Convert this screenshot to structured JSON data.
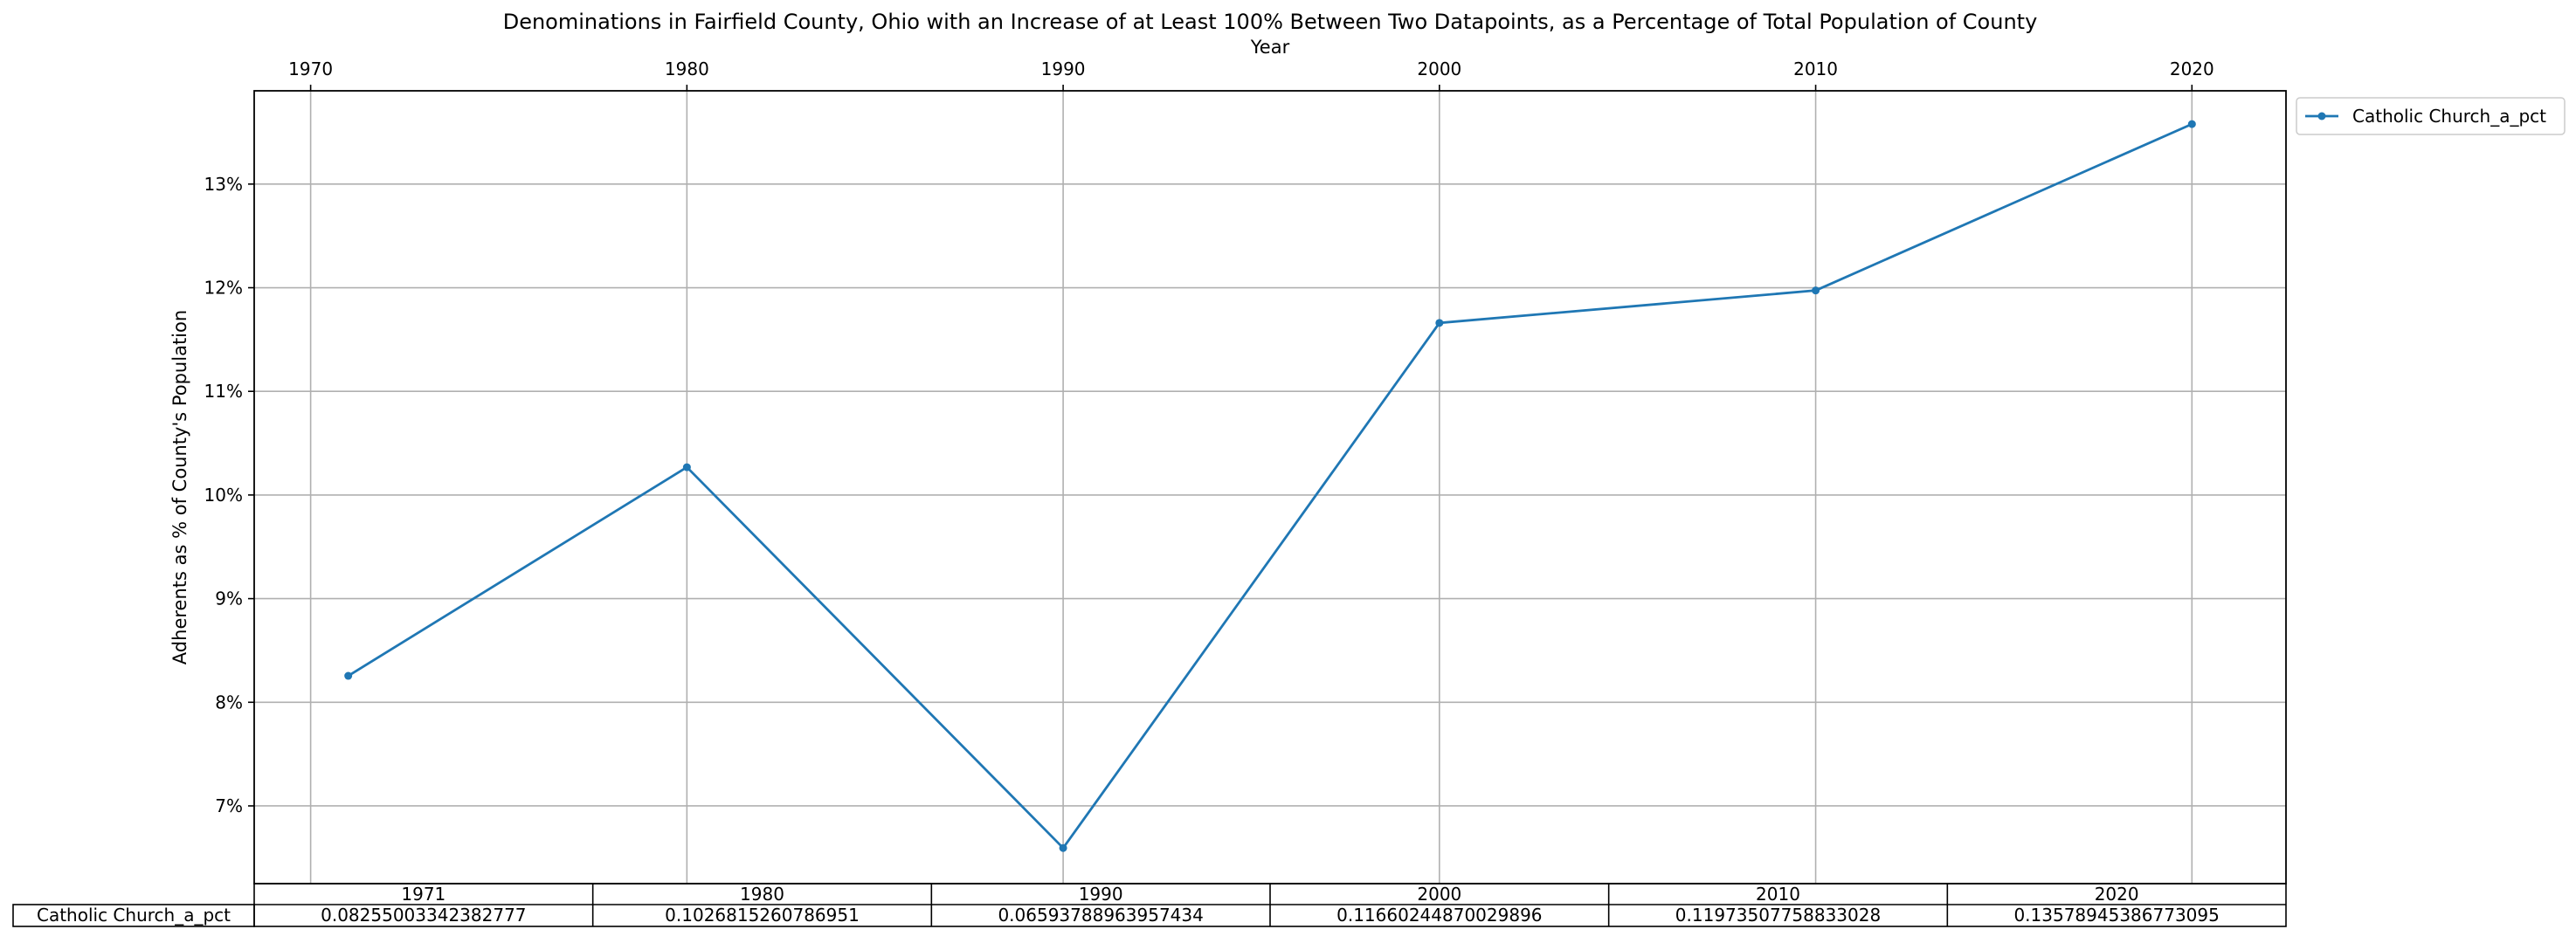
{
  "chart_data": {
    "type": "line",
    "title": "Denominations in Fairfield County, Ohio with an Increase of at Least 100% Between Two Datapoints, as a Percentage of Total Population of County",
    "xlabel": "Year",
    "ylabel": "Adherents as % of County's Population",
    "x_axis_position": "top",
    "xlim": [
      1968.5,
      2022.5
    ],
    "x_ticks": [
      1970,
      1980,
      1990,
      2000,
      2010,
      2020
    ],
    "ylim": [
      0.0625,
      0.139
    ],
    "y_ticks": [
      0.07,
      0.08,
      0.09,
      0.1,
      0.11,
      0.12,
      0.13
    ],
    "y_tick_labels": [
      "7%",
      "8%",
      "9%",
      "10%",
      "11%",
      "12%",
      "13%"
    ],
    "grid": true,
    "legend_position": "outside-upper-right",
    "series": [
      {
        "name": "Catholic Church_a_pct",
        "color": "#1f77b4",
        "marker": "dot",
        "x": [
          1971,
          1980,
          1990,
          2000,
          2010,
          2020
        ],
        "values": [
          0.08255003342382777,
          0.1026815260786951,
          0.06593788963957434,
          0.11660244870029896,
          0.11973507758833028,
          0.13578945386773095
        ]
      }
    ],
    "table": {
      "column_labels": [
        "1971",
        "1980",
        "1990",
        "2000",
        "2010",
        "2020"
      ],
      "row_label": "Catholic Church_a_pct",
      "cells": [
        "0.08255003342382777",
        "0.1026815260786951",
        "0.06593788963957434",
        "0.11660244870029896",
        "0.11973507758833028",
        "0.13578945386773095"
      ]
    }
  }
}
